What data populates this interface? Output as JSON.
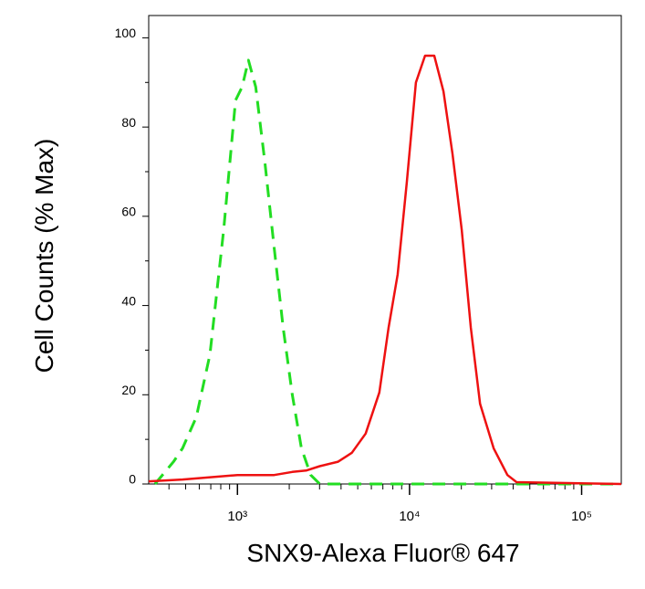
{
  "chart_data": {
    "type": "line",
    "xlabel": "SNX9-Alexa Fluor® 647",
    "ylabel": "Cell Counts (% Max)",
    "log_x": true,
    "xlim": [
      305,
      170000
    ],
    "ylim": [
      0,
      105
    ],
    "xticks": [
      {
        "value": 1000,
        "label": "10³"
      },
      {
        "value": 10000,
        "label": "10⁴"
      },
      {
        "value": 100000,
        "label": "10⁵"
      }
    ],
    "xminorticks": [
      400,
      500,
      600,
      700,
      800,
      900,
      2000,
      3000,
      4000,
      5000,
      6000,
      7000,
      8000,
      9000,
      20000,
      30000,
      40000,
      50000,
      60000,
      70000,
      80000,
      90000
    ],
    "yticks": [
      0,
      20,
      40,
      60,
      80,
      100
    ],
    "yminorticks": [
      10,
      30,
      50,
      70,
      90
    ],
    "series": [
      {
        "color": "#22dd22",
        "dashed": true,
        "x": [
          332,
          425,
          480,
          577,
          692,
          832,
          975,
          1064,
          1158,
          1277,
          1445,
          1633,
          1845,
          2084,
          2355,
          2665,
          3010,
          170000
        ],
        "values": [
          0,
          5,
          8,
          15,
          29,
          57,
          86,
          89,
          95,
          89,
          72,
          53,
          35,
          20,
          8,
          2,
          0,
          0
        ]
      },
      {
        "color": "#ee1111",
        "dashed": false,
        "x": [
          305,
          480,
          1000,
          1633,
          2084,
          2506,
          3010,
          3846,
          4624,
          5556,
          6675,
          7551,
          8531,
          9638,
          10890,
          12310,
          13920,
          15740,
          17780,
          20090,
          22700,
          25700,
          30830,
          37070,
          41880,
          170000
        ],
        "values": [
          0.6,
          1,
          2,
          2,
          2.7,
          3,
          4,
          5,
          7,
          11.3,
          20.5,
          35,
          47,
          67.6,
          90,
          96,
          96,
          88,
          74,
          57,
          35,
          18,
          8,
          2,
          0.4,
          0
        ]
      }
    ]
  }
}
